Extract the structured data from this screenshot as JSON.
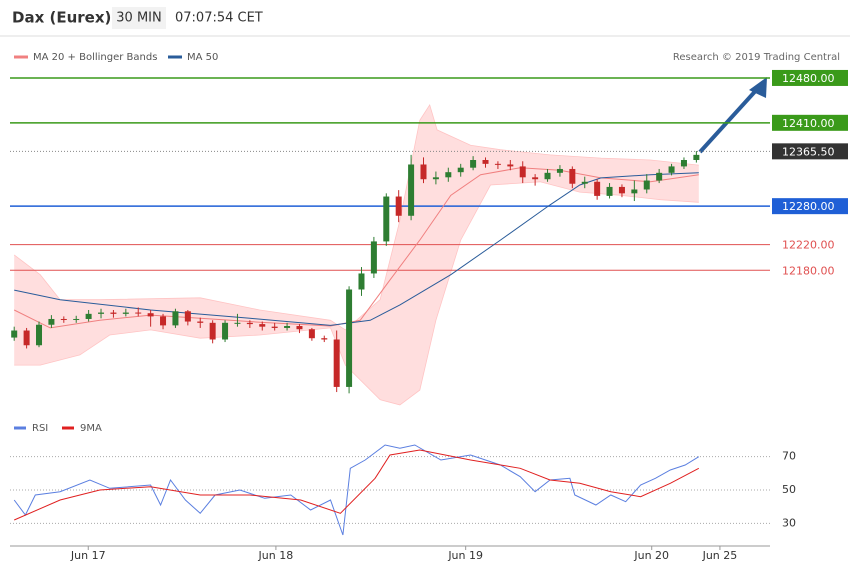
{
  "header": {
    "title": "Dax (Eurex)",
    "interval": "30 MIN",
    "time": "07:07:54 CET"
  },
  "source": "Research © 2019 Trading Central",
  "chart_data": [
    {
      "type": "candlestick",
      "xlim": [
        -0.5,
        66.5
      ],
      "ylim": [
        11962,
        12508
      ],
      "xticks": [
        {
          "value": 5.97,
          "label": "Jun 17"
        },
        {
          "value": 21.1,
          "label": "Jun 18"
        },
        {
          "value": 36.4,
          "label": "Jun 19"
        },
        {
          "value": 51.4,
          "label": "Jun 20"
        },
        {
          "value": 56.9,
          "label": "Jun 25"
        }
      ],
      "up_color": "#2e7d32",
      "down_color": "#c62828",
      "ohlc": [
        [
          12075,
          12092,
          12070,
          12086
        ],
        [
          12086,
          12090,
          12058,
          12063
        ],
        [
          12063,
          12100,
          12060,
          12095
        ],
        [
          12095,
          12110,
          12090,
          12104
        ],
        [
          12104,
          12108,
          12098,
          12103
        ],
        [
          12103,
          12109,
          12098,
          12104
        ],
        [
          12104,
          12118,
          12100,
          12112
        ],
        [
          12112,
          12120,
          12105,
          12114
        ],
        [
          12114,
          12118,
          12106,
          12112
        ],
        [
          12112,
          12120,
          12108,
          12114
        ],
        [
          12114,
          12122,
          12108,
          12113
        ],
        [
          12113,
          12118,
          12092,
          12108
        ],
        [
          12108,
          12112,
          12088,
          12094
        ],
        [
          12094,
          12120,
          12090,
          12116
        ],
        [
          12116,
          12118,
          12094,
          12100
        ],
        [
          12100,
          12106,
          12090,
          12098
        ],
        [
          12098,
          12102,
          12066,
          12072
        ],
        [
          12072,
          12102,
          12068,
          12098
        ],
        [
          12098,
          12112,
          12092,
          12098
        ],
        [
          12098,
          12102,
          12090,
          12096
        ],
        [
          12096,
          12100,
          12086,
          12092
        ],
        [
          12092,
          12098,
          12086,
          12090
        ],
        [
          12090,
          12098,
          12086,
          12093
        ],
        [
          12093,
          12096,
          12082,
          12088
        ],
        [
          12088,
          12090,
          12070,
          12074
        ],
        [
          12074,
          12078,
          12068,
          12072
        ],
        [
          12072,
          12086,
          11990,
          11998
        ],
        [
          11998,
          12155,
          11988,
          12150
        ],
        [
          12150,
          12185,
          12140,
          12175
        ],
        [
          12175,
          12232,
          12168,
          12225
        ],
        [
          12225,
          12300,
          12218,
          12295
        ],
        [
          12295,
          12305,
          12255,
          12265
        ],
        [
          12265,
          12360,
          12258,
          12345
        ],
        [
          12345,
          12356,
          12316,
          12322
        ],
        [
          12322,
          12334,
          12314,
          12325
        ],
        [
          12325,
          12340,
          12318,
          12333
        ],
        [
          12333,
          12346,
          12326,
          12340
        ],
        [
          12340,
          12358,
          12336,
          12352
        ],
        [
          12352,
          12356,
          12340,
          12346
        ],
        [
          12346,
          12350,
          12338,
          12345
        ],
        [
          12345,
          12352,
          12336,
          12342
        ],
        [
          12342,
          12350,
          12316,
          12325
        ],
        [
          12325,
          12330,
          12312,
          12322
        ],
        [
          12322,
          12338,
          12318,
          12332
        ],
        [
          12332,
          12344,
          12326,
          12338
        ],
        [
          12338,
          12342,
          12308,
          12315
        ],
        [
          12315,
          12326,
          12308,
          12318
        ],
        [
          12318,
          12322,
          12290,
          12296
        ],
        [
          12296,
          12316,
          12292,
          12310
        ],
        [
          12310,
          12314,
          12294,
          12300
        ],
        [
          12300,
          12320,
          12288,
          12306
        ],
        [
          12306,
          12330,
          12300,
          12320
        ],
        [
          12320,
          12338,
          12316,
          12332
        ],
        [
          12332,
          12346,
          12328,
          12342
        ],
        [
          12342,
          12356,
          12338,
          12352
        ],
        [
          12352,
          12366,
          12348,
          12360
        ]
      ],
      "series": [
        {
          "name": "MA 20 + Bollinger Bands",
          "color": "#f08080",
          "band_color": "#ffdede",
          "x": [
            0,
            2.9,
            6.9,
            11,
            15,
            19.8,
            25.5,
            27.9,
            30.3,
            32.7,
            35.2,
            37.6,
            40.8,
            44,
            47.3,
            51.3,
            55.2
          ],
          "values": [
            12118,
            12090,
            12102,
            12110,
            12105,
            12099,
            12093,
            12102,
            12165,
            12227,
            12297,
            12329,
            12340,
            12336,
            12324,
            12318,
            12329
          ],
          "upper": {
            "x": [
              0,
              2.1,
              3.7,
              6.9,
              15,
              19.8,
              25.5,
              26.7,
              29.5,
              31.1,
              32.7,
              33.5,
              34.1,
              36.8,
              39.2,
              43.2,
              47.3,
              51.3,
              55.2
            ],
            "values": [
              12204,
              12173,
              12134,
              12134,
              12137,
              12118,
              12102,
              12087,
              12134,
              12258,
              12414,
              12438,
              12399,
              12375,
              12368,
              12360,
              12355,
              12352,
              12344
            ]
          },
          "lower": {
            "x": [
              0,
              2.1,
              5.3,
              7.7,
              11,
              15,
              19.8,
              25.5,
              26.7,
              29.5,
              31.1,
              32.7,
              34,
              36,
              38.4,
              42.4,
              45.6,
              48.9,
              52.1,
              55.2
            ],
            "values": [
              12032,
              12032,
              12048,
              12079,
              12087,
              12074,
              12079,
              12090,
              12032,
              11978,
              11970,
              11993,
              12102,
              12227,
              12313,
              12318,
              12302,
              12297,
              12290,
              12286
            ]
          }
        },
        {
          "name": "MA 50",
          "color": "#2a5c9a",
          "x": [
            0,
            3.7,
            11,
            19,
            25.5,
            28.7,
            31.1,
            35.2,
            39.2,
            43.2,
            45.6,
            47.3,
            51.3,
            55.2
          ],
          "values": [
            12149,
            12134,
            12118,
            12105,
            12094,
            12102,
            12126,
            12173,
            12227,
            12282,
            12313,
            12324,
            12329,
            12332
          ]
        }
      ],
      "levels": [
        {
          "value": 12480,
          "label": "12480.00",
          "color": "#3a9a1a",
          "boxed": true
        },
        {
          "value": 12410,
          "label": "12410.00",
          "color": "#3a9a1a",
          "boxed": true
        },
        {
          "value": 12280,
          "label": "12280.00",
          "color": "#1f5fd6",
          "boxed": true
        },
        {
          "value": 12220,
          "label": "12220.00",
          "color": "#e05050",
          "boxed": false
        },
        {
          "value": 12180,
          "label": "12180.00",
          "color": "#e05050",
          "boxed": false
        }
      ],
      "last": {
        "value": 12365.5,
        "label": "12365.50",
        "color": "#333333"
      }
    },
    {
      "type": "line",
      "xlim": [
        -0.5,
        66.5
      ],
      "ylim": [
        20,
        89
      ],
      "yticks": [
        30,
        50,
        70
      ],
      "grid": true,
      "series": [
        {
          "name": "RSI",
          "color": "#5b7fe0",
          "x": [
            0,
            0.9,
            1.7,
            3.7,
            6.1,
            7.7,
            11,
            11.8,
            12.6,
            13.8,
            15,
            16.2,
            18.2,
            20.2,
            22.3,
            23.9,
            25.5,
            26.5,
            27.1,
            28.3,
            29.9,
            31.1,
            32.3,
            34.4,
            36.8,
            39.2,
            40.8,
            42,
            43.2,
            44.8,
            45.2,
            46.9,
            48.1,
            49.3,
            50.5,
            51.7,
            52.9,
            54.1,
            55.2
          ],
          "values": [
            44,
            35,
            47,
            49,
            56,
            51,
            53,
            41,
            56,
            44,
            36,
            47,
            50,
            45,
            47,
            38,
            44,
            23,
            63,
            68,
            77,
            75,
            77,
            68,
            71,
            65,
            58,
            49,
            56,
            57,
            47,
            41,
            47,
            43,
            53,
            57,
            62,
            65,
            70
          ]
        },
        {
          "name": "9MA",
          "color": "#e02020",
          "x": [
            0,
            3.7,
            6.9,
            11,
            15,
            19,
            23.1,
            26.3,
            29.1,
            30.3,
            32.7,
            36.8,
            40.8,
            43.2,
            45.6,
            48.1,
            50.5,
            52.9,
            55.2
          ],
          "values": [
            32,
            44,
            50,
            52,
            47,
            47,
            44,
            36,
            57,
            71,
            74,
            68,
            63,
            56,
            54,
            49,
            46,
            54,
            63
          ]
        }
      ]
    }
  ]
}
